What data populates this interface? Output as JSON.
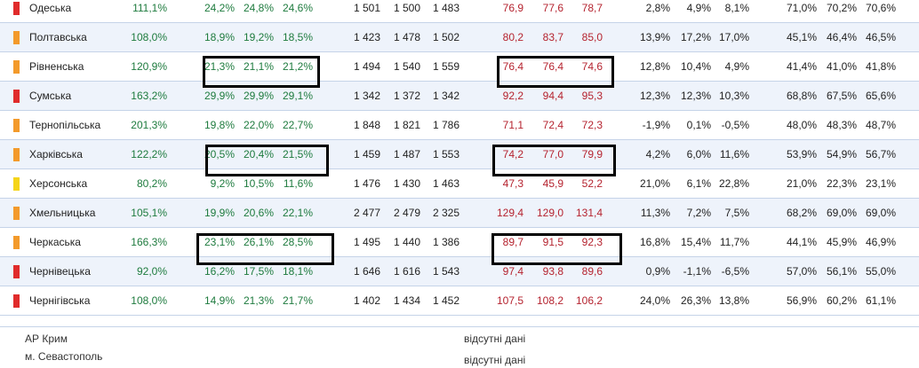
{
  "colors": {
    "red": "#e02b2b",
    "orange": "#f39a2b",
    "yellow": "#f5d418"
  },
  "rows": [
    {
      "name": "Одеська",
      "marker": "red",
      "c1": "111,1%",
      "g1": "24,2%",
      "g2": "24,8%",
      "g3": "24,6%",
      "n1": "1 501",
      "n2": "1 500",
      "n3": "1 483",
      "r1": "76,9",
      "r2": "77,6",
      "r3": "78,7",
      "p1": "2,8%",
      "p2": "4,9%",
      "p3": "8,1%",
      "q1": "71,0%",
      "q2": "70,2%",
      "q3": "70,6%"
    },
    {
      "name": "Полтавська",
      "marker": "orange",
      "c1": "108,0%",
      "g1": "18,9%",
      "g2": "19,2%",
      "g3": "18,5%",
      "n1": "1 423",
      "n2": "1 478",
      "n3": "1 502",
      "r1": "80,2",
      "r2": "83,7",
      "r3": "85,0",
      "p1": "13,9%",
      "p2": "17,2%",
      "p3": "17,0%",
      "q1": "45,1%",
      "q2": "46,4%",
      "q3": "46,5%"
    },
    {
      "name": "Рівненська",
      "marker": "orange",
      "c1": "120,9%",
      "g1": "21,3%",
      "g2": "21,1%",
      "g3": "21,2%",
      "n1": "1 494",
      "n2": "1 540",
      "n3": "1 559",
      "r1": "76,4",
      "r2": "76,4",
      "r3": "74,6",
      "p1": "12,8%",
      "p2": "10,4%",
      "p3": "4,9%",
      "q1": "41,4%",
      "q2": "41,0%",
      "q3": "41,8%"
    },
    {
      "name": "Сумська",
      "marker": "red",
      "c1": "163,2%",
      "g1": "29,9%",
      "g2": "29,9%",
      "g3": "29,1%",
      "n1": "1 342",
      "n2": "1 372",
      "n3": "1 342",
      "r1": "92,2",
      "r2": "94,4",
      "r3": "95,3",
      "p1": "12,3%",
      "p2": "12,3%",
      "p3": "10,3%",
      "q1": "68,8%",
      "q2": "67,5%",
      "q3": "65,6%"
    },
    {
      "name": "Тернопільська",
      "marker": "orange",
      "c1": "201,3%",
      "g1": "19,8%",
      "g2": "22,0%",
      "g3": "22,7%",
      "n1": "1 848",
      "n2": "1 821",
      "n3": "1 786",
      "r1": "71,1",
      "r2": "72,4",
      "r3": "72,3",
      "p1": "-1,9%",
      "p2": "0,1%",
      "p3": "-0,5%",
      "q1": "48,0%",
      "q2": "48,3%",
      "q3": "48,7%"
    },
    {
      "name": "Харківська",
      "marker": "orange",
      "c1": "122,2%",
      "g1": "20,5%",
      "g2": "20,4%",
      "g3": "21,5%",
      "n1": "1 459",
      "n2": "1 487",
      "n3": "1 553",
      "r1": "74,2",
      "r2": "77,0",
      "r3": "79,9",
      "p1": "4,2%",
      "p2": "6,0%",
      "p3": "11,6%",
      "q1": "53,9%",
      "q2": "54,9%",
      "q3": "56,7%"
    },
    {
      "name": "Херсонська",
      "marker": "yellow",
      "c1": "80,2%",
      "g1": "9,2%",
      "g2": "10,5%",
      "g3": "11,6%",
      "n1": "1 476",
      "n2": "1 430",
      "n3": "1 463",
      "r1": "47,3",
      "r2": "45,9",
      "r3": "52,2",
      "p1": "21,0%",
      "p2": "6,1%",
      "p3": "22,8%",
      "q1": "21,0%",
      "q2": "22,3%",
      "q3": "23,1%"
    },
    {
      "name": "Хмельницька",
      "marker": "orange",
      "c1": "105,1%",
      "g1": "19,9%",
      "g2": "20,6%",
      "g3": "22,1%",
      "n1": "2 477",
      "n2": "2 479",
      "n3": "2 325",
      "r1": "129,4",
      "r2": "129,0",
      "r3": "131,4",
      "p1": "11,3%",
      "p2": "7,2%",
      "p3": "7,5%",
      "q1": "68,2%",
      "q2": "69,0%",
      "q3": "69,0%"
    },
    {
      "name": "Черкаська",
      "marker": "orange",
      "c1": "166,3%",
      "g1": "23,1%",
      "g2": "26,1%",
      "g3": "28,5%",
      "n1": "1 495",
      "n2": "1 440",
      "n3": "1 386",
      "r1": "89,7",
      "r2": "91,5",
      "r3": "92,3",
      "p1": "16,8%",
      "p2": "15,4%",
      "p3": "11,7%",
      "q1": "44,1%",
      "q2": "45,9%",
      "q3": "46,9%"
    },
    {
      "name": "Чернівецька",
      "marker": "red",
      "c1": "92,0%",
      "g1": "16,2%",
      "g2": "17,5%",
      "g3": "18,1%",
      "n1": "1 646",
      "n2": "1 616",
      "n3": "1 543",
      "r1": "97,4",
      "r2": "93,8",
      "r3": "89,6",
      "p1": "0,9%",
      "p2": "-1,1%",
      "p3": "-6,5%",
      "q1": "57,0%",
      "q2": "56,1%",
      "q3": "55,0%"
    },
    {
      "name": "Чернігівська",
      "marker": "red",
      "c1": "108,0%",
      "g1": "14,9%",
      "g2": "21,3%",
      "g3": "21,7%",
      "n1": "1 402",
      "n2": "1 434",
      "n3": "1 452",
      "r1": "107,5",
      "r2": "108,2",
      "r3": "106,2",
      "p1": "24,0%",
      "p2": "26,3%",
      "p3": "13,8%",
      "q1": "56,9%",
      "q2": "60,2%",
      "q3": "61,1%"
    }
  ],
  "footer": {
    "crimea": "АР Крим",
    "sevastopol": "м. Севастополь",
    "missing_1": "відсутні дані",
    "missing_2": "відсутні дані"
  }
}
